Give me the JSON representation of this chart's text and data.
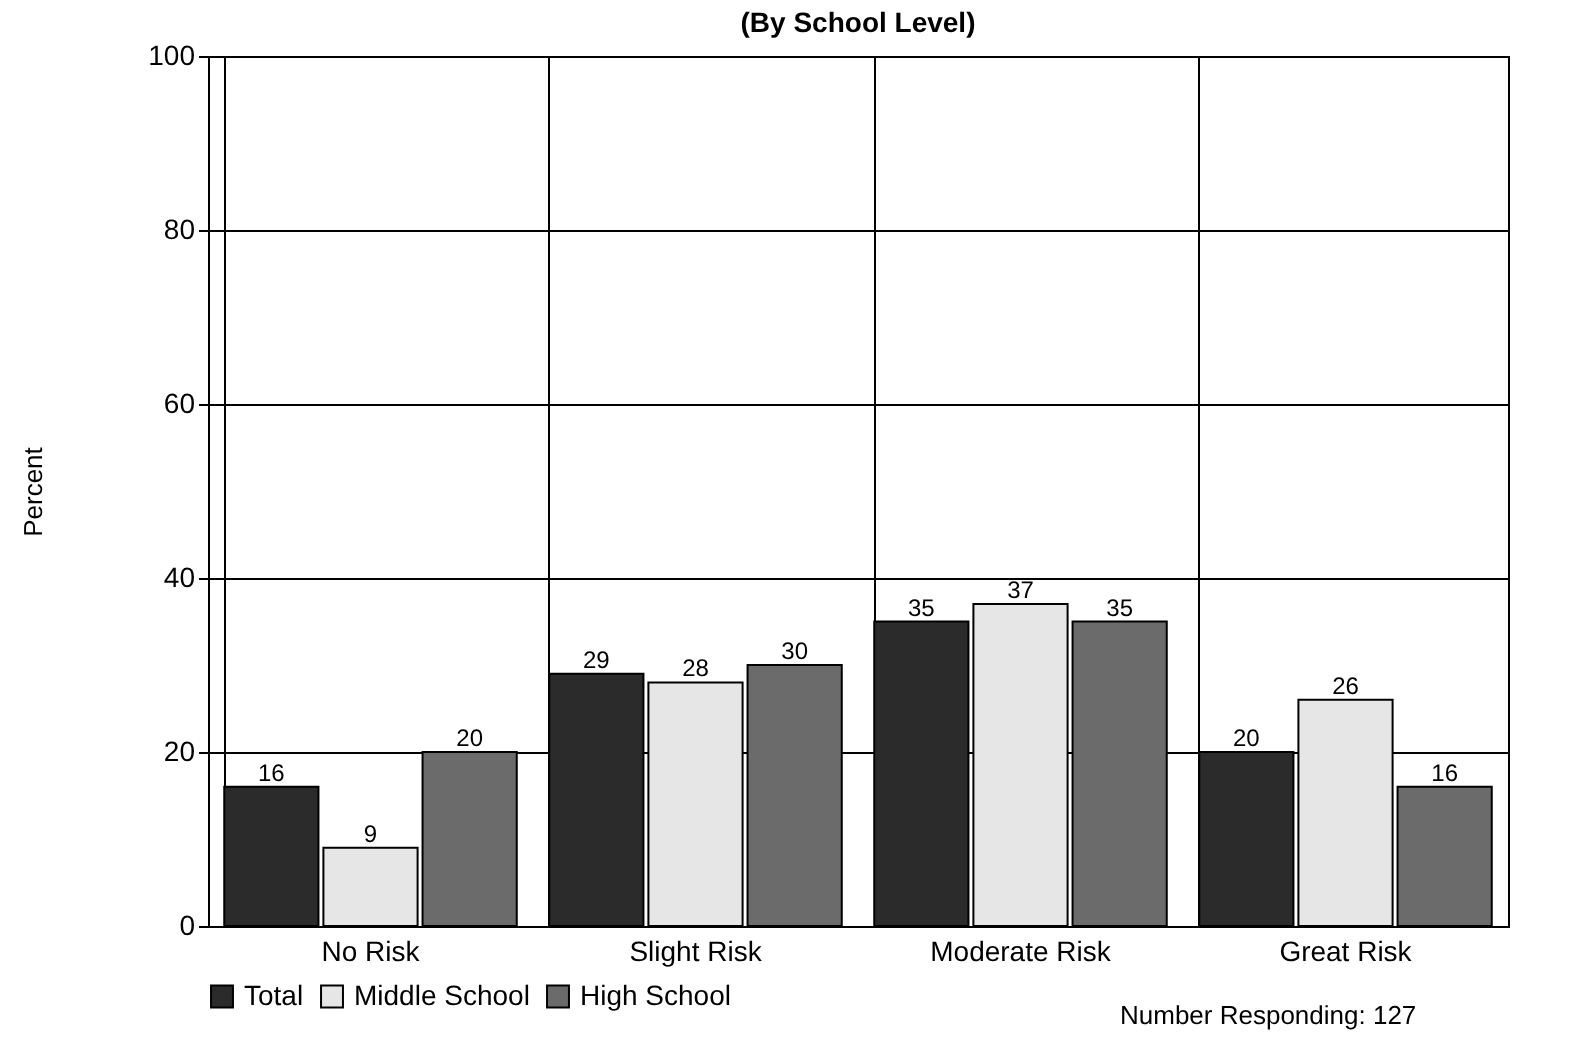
{
  "chart_data": {
    "type": "bar",
    "title": "(By School Level)",
    "ylabel": "Percent",
    "categories": [
      "No Risk",
      "Slight Risk",
      "Moderate Risk",
      "Great Risk"
    ],
    "series": [
      {
        "name": "Total",
        "color": "#2b2b2b",
        "values": [
          16,
          29,
          35,
          20
        ]
      },
      {
        "name": "Middle School",
        "color": "#e6e6e6",
        "values": [
          9,
          28,
          37,
          26
        ]
      },
      {
        "name": "High School",
        "color": "#6b6b6b",
        "values": [
          20,
          30,
          35,
          16
        ]
      }
    ],
    "ylim": [
      0,
      100
    ],
    "yticks": [
      0,
      20,
      40,
      60,
      80,
      100
    ],
    "grid": true,
    "legend": "bottom",
    "data_labels": true,
    "annotations": [
      "Number Responding: 127"
    ]
  }
}
